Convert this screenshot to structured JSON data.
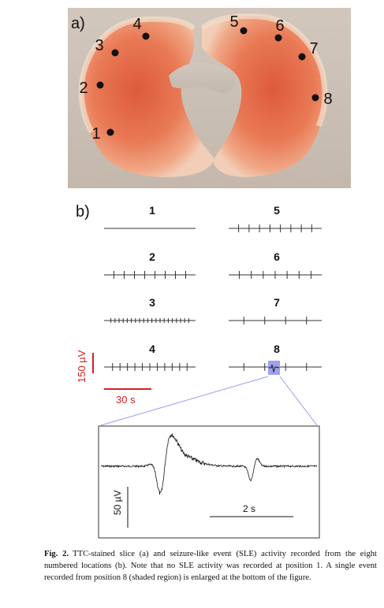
{
  "panel_a": {
    "label": "a)",
    "electrodes": [
      {
        "id": "1",
        "label": "1"
      },
      {
        "id": "2",
        "label": "2"
      },
      {
        "id": "3",
        "label": "3"
      },
      {
        "id": "4",
        "label": "4"
      },
      {
        "id": "5",
        "label": "5"
      },
      {
        "id": "6",
        "label": "6"
      },
      {
        "id": "7",
        "label": "7"
      },
      {
        "id": "8",
        "label": "8"
      }
    ]
  },
  "panel_b": {
    "label": "b)",
    "traces": [
      {
        "label": "1",
        "spike_count": 0
      },
      {
        "label": "2",
        "spike_count": 8
      },
      {
        "label": "3",
        "spike_count": 20
      },
      {
        "label": "4",
        "spike_count": 11
      },
      {
        "label": "5",
        "spike_count": 8
      },
      {
        "label": "6",
        "spike_count": 7
      },
      {
        "label": "7",
        "spike_count": 4
      },
      {
        "label": "8",
        "spike_count": 4
      }
    ],
    "scale_voltage": "150 µV",
    "scale_time": "30 s",
    "scale_color": "#d22020",
    "highlight_color": "#8d8ff0"
  },
  "inset": {
    "scale_voltage": "50 µV",
    "scale_time": "2 s"
  },
  "caption": {
    "label": "Fig. 2.",
    "text": "TTC-stained slice (a) and seizure-like event (SLE) activity recorded from the eight numbered locations (b). Note that no SLE activity was recorded at position 1. A single event recorded from position 8 (shaded region) is enlarged at the bottom of the figure."
  }
}
